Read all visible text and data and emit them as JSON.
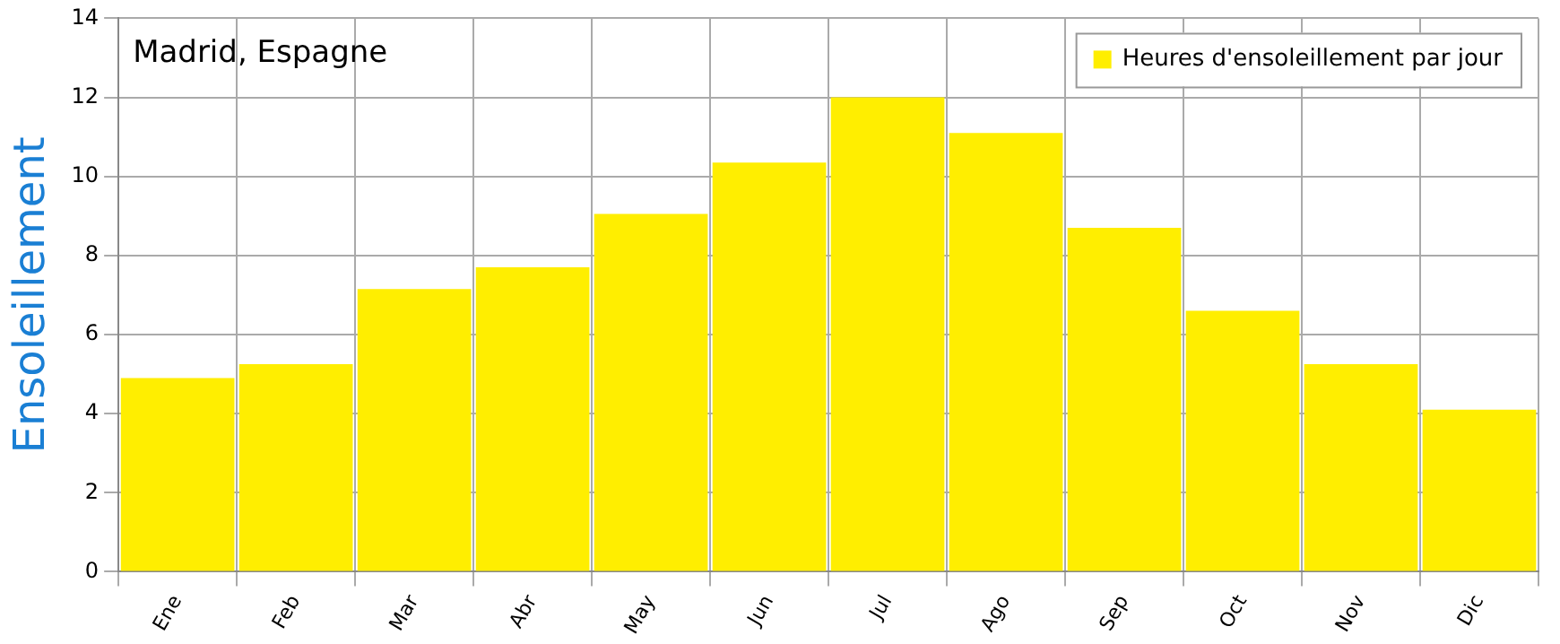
{
  "chart_data": {
    "type": "bar",
    "title": "Madrid, Espagne",
    "ylabel": "Ensoleillement",
    "categories": [
      "Ene",
      "Feb",
      "Mar",
      "Abr",
      "May",
      "Jun",
      "Jul",
      "Ago",
      "Sep",
      "Oct",
      "Nov",
      "Dic"
    ],
    "series": [
      {
        "name": "Heures d'ensoleillement par jour",
        "color": "#ffee00",
        "values": [
          4.9,
          5.25,
          7.15,
          7.7,
          9.05,
          10.35,
          12.0,
          11.1,
          8.7,
          6.6,
          5.25,
          4.1
        ]
      }
    ],
    "ylim": [
      0,
      14
    ],
    "yticks": [
      0,
      2,
      4,
      6,
      8,
      10,
      12,
      14
    ],
    "grid": true,
    "legend": "top right"
  }
}
